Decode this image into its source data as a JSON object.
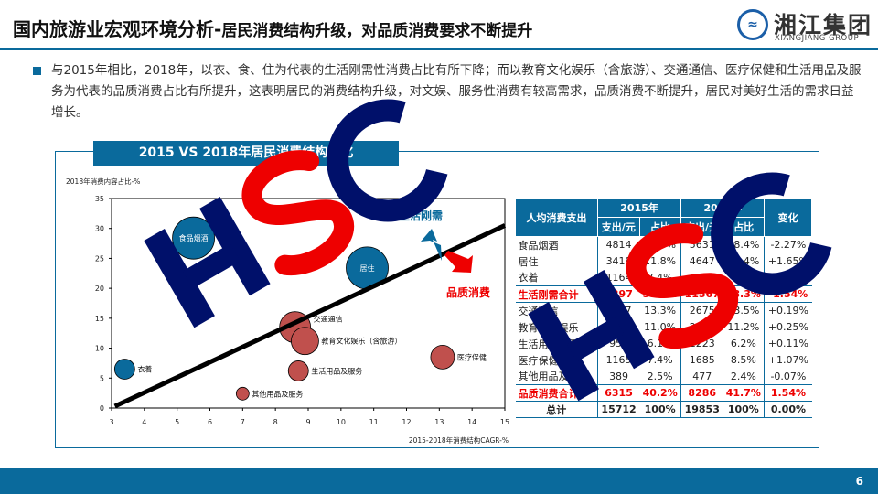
{
  "header": {
    "title_main": "国内旅游业宏观环境分析-",
    "title_sub": "居民消费结构升级，对品质消费要求不断提升",
    "logo_cn": "湘江集团",
    "logo_en": "XIANGJIANG GROUP"
  },
  "paragraph": "与2015年相比，2018年，以衣、食、住为代表的生活刚需性消费占比有所下降；而以教育文化娱乐（含旅游）、交通通信、医疗保健和生活用品及服务为代表的品质消费占比有所提升，这表明居民的消费结构升级，对文娱、服务性消费有较高需求，品质消费不断提升，居民对美好生活的需求日益增长。",
  "chart_data": {
    "type": "scatter",
    "title": "2015 VS 2018年居民消费结构变化",
    "xlabel": "2015-2018年消费结构CAGR-%",
    "ylabel": "2018年消费内容占比-%",
    "xlim": [
      3,
      15
    ],
    "ylim": [
      0,
      35
    ],
    "xticks": [
      "3",
      "4",
      "5",
      "6",
      "7",
      "8",
      "9",
      "10",
      "11",
      "12",
      "13",
      "14",
      "15"
    ],
    "yticks": [
      "0",
      "5",
      "10",
      "15",
      "20",
      "25",
      "30",
      "35"
    ],
    "points": [
      {
        "label": "食品烟酒",
        "x": 5.5,
        "y": 28.4,
        "group": "刚需"
      },
      {
        "label": "居住",
        "x": 10.8,
        "y": 23.4,
        "group": "刚需"
      },
      {
        "label": "衣着",
        "x": 3.4,
        "y": 6.5,
        "group": "刚需"
      },
      {
        "label": "交通通信",
        "x": 8.6,
        "y": 13.5,
        "group": "品质"
      },
      {
        "label": "教育文化娱乐（含旅游）",
        "x": 8.9,
        "y": 11.2,
        "group": "品质"
      },
      {
        "label": "医疗保健",
        "x": 13.1,
        "y": 8.5,
        "group": "品质"
      },
      {
        "label": "生活用品及服务",
        "x": 8.7,
        "y": 6.2,
        "group": "品质"
      },
      {
        "label": "其他用品及服务",
        "x": 7.0,
        "y": 2.4,
        "group": "品质"
      }
    ],
    "trendline": {
      "from": [
        3.1,
        0.3
      ],
      "to": [
        15,
        30.5
      ]
    },
    "annotations": {
      "up": "生活刚需",
      "down": "品质消费"
    },
    "colors": {
      "刚需": "#0a6a9c",
      "品质": "#c0504d"
    }
  },
  "table": {
    "headers": {
      "c0": "人均消费支出",
      "y2015": "2015年",
      "y2018": "2018年",
      "change": "变化",
      "spend": "支出/元",
      "share": "占比"
    },
    "rows": [
      {
        "name": "食品烟酒",
        "s15": "4814",
        "p15": "30.6%",
        "s18": "5631",
        "p18": "28.4%",
        "chg": "-2.27%",
        "type": "n"
      },
      {
        "name": "居住",
        "s15": "3419",
        "p15": "21.8%",
        "s18": "4647",
        "p18": "23.4%",
        "chg": "+1.65%",
        "type": "n"
      },
      {
        "name": "衣着",
        "s15": "1164",
        "p15": "7.4%",
        "s18": "1289",
        "p18": "6.5%",
        "chg": "-0.92%",
        "type": "n"
      },
      {
        "name": "生活刚需合计",
        "s15": "9397",
        "p15": "59.8%",
        "s18": "11567",
        "p18": "58.3%",
        "chg": "-1.54%",
        "type": "red"
      },
      {
        "name": "交通通信",
        "s15": "2087",
        "p15": "13.3%",
        "s18": "2675",
        "p18": "13.5%",
        "chg": "+0.19%",
        "type": "n"
      },
      {
        "name": "教育文化娱乐",
        "s15": "1723",
        "p15": "11.0%",
        "s18": "2226",
        "p18": "11.2%",
        "chg": "+0.25%",
        "type": "n"
      },
      {
        "name": "生活用品及服务",
        "s15": "951",
        "p15": "6.1%",
        "s18": "1223",
        "p18": "6.2%",
        "chg": "+0.11%",
        "type": "n"
      },
      {
        "name": "医疗保健",
        "s15": "1165",
        "p15": "7.4%",
        "s18": "1685",
        "p18": "8.5%",
        "chg": "+1.07%",
        "type": "n"
      },
      {
        "name": "其他用品及服务",
        "s15": "389",
        "p15": "2.5%",
        "s18": "477",
        "p18": "2.4%",
        "chg": "-0.07%",
        "type": "n"
      },
      {
        "name": "品质消费合计",
        "s15": "6315",
        "p15": "40.2%",
        "s18": "8286",
        "p18": "41.7%",
        "chg": "1.54%",
        "type": "red"
      },
      {
        "name": "总计",
        "s15": "15712",
        "p15": "100%",
        "s18": "19853",
        "p18": "100%",
        "chg": "0.00%",
        "type": "tot"
      }
    ]
  },
  "watermark": "HSC",
  "page_number": "6"
}
